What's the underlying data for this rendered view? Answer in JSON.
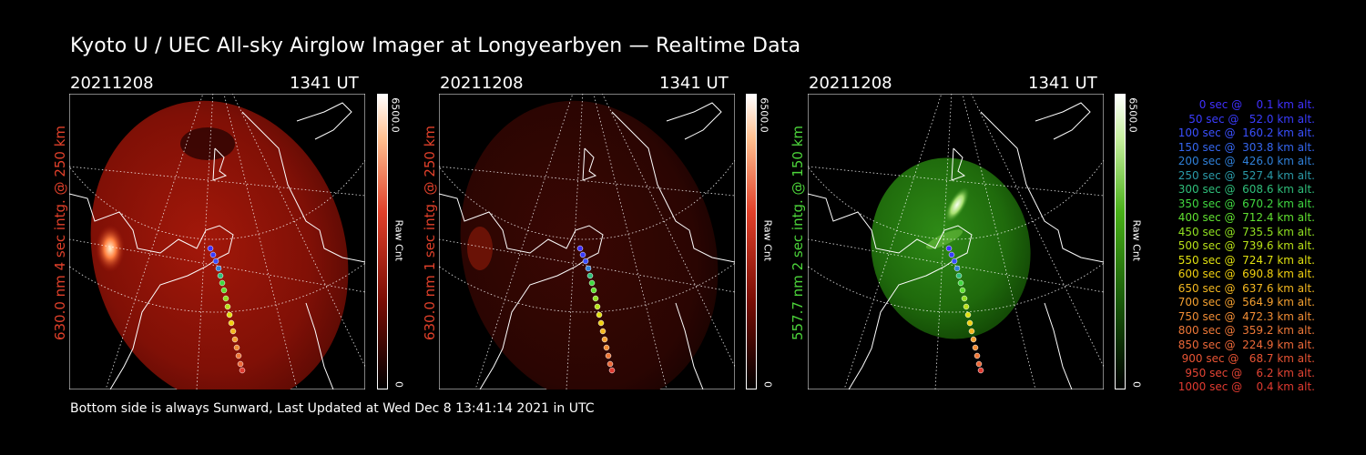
{
  "title": "Kyoto U / UEC All-sky Airglow Imager at Longyearbyen — Realtime Data",
  "footer": "Bottom side is always Sunward, Last Updated at Wed Dec  8 13:41:14 2021 in UTC",
  "panels": [
    {
      "date": "20211208",
      "time": "1341 UT",
      "ylabel": "630.0 nm 4 sec intg. @ 250 km",
      "label_color": "#e0402a",
      "colorbar_max": "6500.0",
      "colorbar_min": "0",
      "colorbar_label": "Raw Cnt",
      "cmap": [
        "#000000",
        "#7a0d04",
        "#e0402a",
        "#ffc090",
        "#ffffff"
      ]
    },
    {
      "date": "20211208",
      "time": "1341 UT",
      "ylabel": "630.0 nm 1 sec intg. @ 250 km",
      "label_color": "#e0402a",
      "colorbar_max": "6500.0",
      "colorbar_min": "0",
      "colorbar_label": "Raw Cnt",
      "cmap": [
        "#000000",
        "#7a0d04",
        "#e0402a",
        "#ffc090",
        "#ffffff"
      ]
    },
    {
      "date": "20211208",
      "time": "1341 UT",
      "ylabel": "557.7 nm 2 sec intg. @ 150 km",
      "label_color": "#4cd43a",
      "colorbar_max": "6500.0",
      "colorbar_min": "0",
      "colorbar_label": "Raw Cnt",
      "cmap": [
        "#000000",
        "#1a5c0a",
        "#48b018",
        "#c8f0a0",
        "#ffffff"
      ]
    }
  ],
  "legend": [
    {
      "text": "0 sec @    0.1 km alt.",
      "color": "#4030ff"
    },
    {
      "text": "50 sec @   52.0 km alt.",
      "color": "#3a3cff"
    },
    {
      "text": "100 sec @  160.2 km alt.",
      "color": "#3a50ff"
    },
    {
      "text": "150 sec @  303.8 km alt.",
      "color": "#3566f0"
    },
    {
      "text": "200 sec @  426.0 km alt.",
      "color": "#2f80d8"
    },
    {
      "text": "250 sec @  527.4 km alt.",
      "color": "#2a9aa8"
    },
    {
      "text": "300 sec @  608.6 km alt.",
      "color": "#2fbe7a"
    },
    {
      "text": "350 sec @  670.2 km alt.",
      "color": "#40d840"
    },
    {
      "text": "400 sec @  712.4 km alt.",
      "color": "#60e030"
    },
    {
      "text": "450 sec @  735.5 km alt.",
      "color": "#90e020"
    },
    {
      "text": "500 sec @  739.6 km alt.",
      "color": "#b8e018"
    },
    {
      "text": "550 sec @  724.7 km alt.",
      "color": "#e0e010"
    },
    {
      "text": "600 sec @  690.8 km alt.",
      "color": "#f0d010"
    },
    {
      "text": "650 sec @  637.6 km alt.",
      "color": "#f4b820"
    },
    {
      "text": "700 sec @  564.9 km alt.",
      "color": "#f4a030"
    },
    {
      "text": "750 sec @  472.3 km alt.",
      "color": "#f08c34"
    },
    {
      "text": "800 sec @  359.2 km alt.",
      "color": "#ee7838"
    },
    {
      "text": "850 sec @  224.9 km alt.",
      "color": "#ec6838"
    },
    {
      "text": "900 sec @   68.7 km alt.",
      "color": "#e85434"
    },
    {
      "text": "950 sec @    6.2 km alt.",
      "color": "#e44434"
    },
    {
      "text": "1000 sec @    0.4 km alt.",
      "color": "#e03a30"
    }
  ]
}
